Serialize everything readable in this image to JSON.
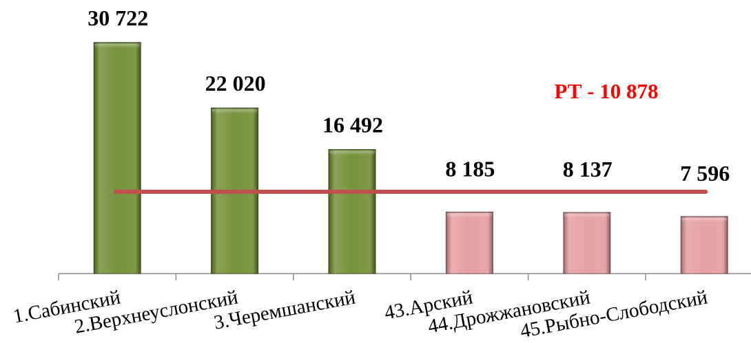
{
  "chart_data": {
    "type": "bar",
    "categories": [
      "1.Сабинский",
      "2.Верхнеуслонский",
      "3.Черемшанский",
      "43.Арский",
      "44.Дрожжановский",
      "45.Рыбно-Слободский"
    ],
    "values": [
      30722,
      22020,
      16492,
      8185,
      8137,
      7596
    ],
    "value_labels": [
      "30 722",
      "22 020",
      "16 492",
      "8 185",
      "8 137",
      "7 596"
    ],
    "bar_colors": [
      "#77933c",
      "#77933c",
      "#77933c",
      "#e6a1a1",
      "#e6a1a1",
      "#e6a1a1"
    ],
    "reference_line": {
      "label": "РТ - 10 878",
      "value": 10878,
      "color": "#c0504d",
      "label_color": "#ff0000"
    },
    "ylim": [
      0,
      36000
    ],
    "y_axis_visible": false,
    "grid": false,
    "legend": false
  }
}
